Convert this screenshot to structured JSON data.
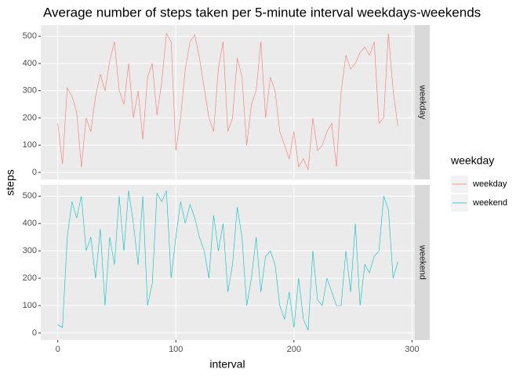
{
  "chart_data": {
    "type": "line",
    "title": "Average number of steps taken per 5-minute interval weekdays-weekends",
    "x_label": "interval",
    "y_label": "steps",
    "legend_title": "weekday",
    "x": [
      0,
      4,
      8,
      12,
      16,
      20,
      24,
      28,
      32,
      36,
      40,
      44,
      48,
      52,
      56,
      60,
      64,
      68,
      72,
      76,
      80,
      84,
      88,
      92,
      96,
      100,
      104,
      108,
      112,
      116,
      120,
      124,
      128,
      132,
      136,
      140,
      144,
      148,
      152,
      156,
      160,
      164,
      168,
      172,
      176,
      180,
      184,
      188,
      192,
      196,
      200,
      204,
      208,
      212,
      216,
      220,
      224,
      228,
      232,
      236,
      240,
      244,
      248,
      252,
      256,
      260,
      264,
      268,
      272,
      276,
      280,
      284,
      288
    ],
    "series": [
      {
        "name": "weekday",
        "color": "#F8766D",
        "values": [
          180,
          30,
          310,
          280,
          220,
          20,
          200,
          150,
          280,
          360,
          300,
          410,
          480,
          300,
          250,
          400,
          200,
          300,
          120,
          350,
          400,
          210,
          330,
          510,
          480,
          80,
          200,
          380,
          480,
          505,
          420,
          310,
          200,
          150,
          380,
          480,
          150,
          200,
          420,
          350,
          100,
          250,
          300,
          480,
          200,
          350,
          300,
          150,
          100,
          50,
          150,
          20,
          50,
          10,
          200,
          80,
          100,
          150,
          180,
          20,
          300,
          430,
          380,
          400,
          440,
          460,
          430,
          480,
          180,
          200,
          510,
          300,
          170
        ]
      },
      {
        "name": "weekend",
        "color": "#00BFC4",
        "values": [
          30,
          20,
          350,
          480,
          420,
          500,
          300,
          350,
          200,
          380,
          100,
          350,
          250,
          500,
          300,
          520,
          400,
          250,
          500,
          100,
          180,
          510,
          480,
          520,
          200,
          350,
          480,
          400,
          470,
          420,
          350,
          300,
          200,
          430,
          300,
          400,
          150,
          250,
          460,
          350,
          100,
          200,
          350,
          150,
          280,
          300,
          250,
          100,
          50,
          150,
          20,
          200,
          50,
          10,
          300,
          120,
          100,
          200,
          150,
          100,
          100,
          300,
          150,
          400,
          100,
          250,
          220,
          280,
          300,
          500,
          450,
          200,
          260
        ]
      }
    ],
    "xlim": [
      -14.4,
      302.4
    ],
    "xticks": [
      0,
      100,
      200,
      300
    ],
    "ylim": [
      -26,
      541
    ],
    "yticks": [
      0,
      100,
      200,
      300,
      400,
      500
    ],
    "grid": true,
    "legend": "right"
  }
}
